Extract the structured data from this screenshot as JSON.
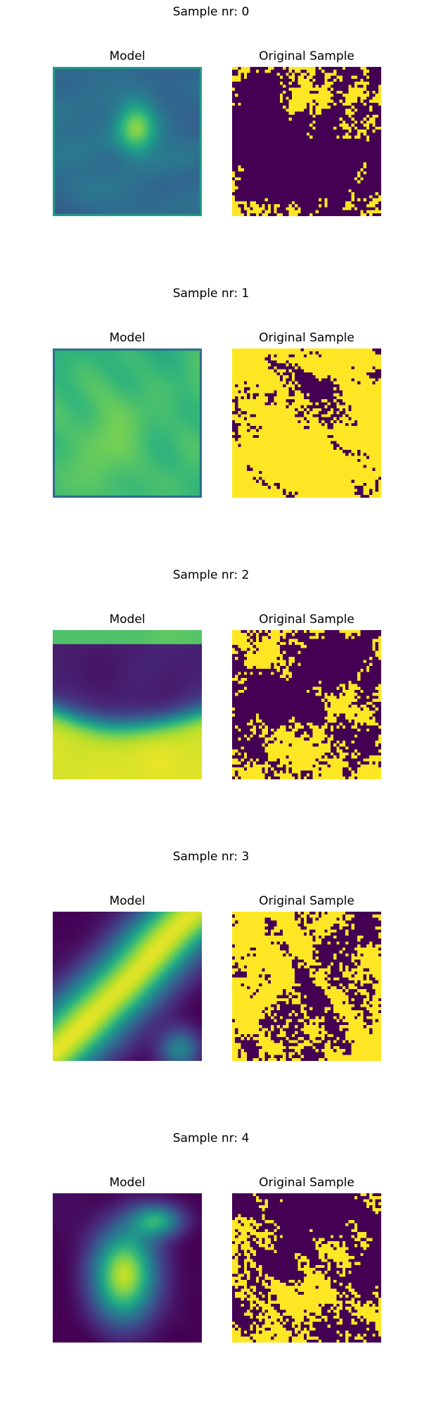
{
  "panel_labels": {
    "model": "Model",
    "original": "Original Sample"
  },
  "colormap": "viridis",
  "colors": {
    "low": "#440154",
    "high": "#fde725"
  },
  "samples": [
    {
      "title": "Sample nr: 0",
      "model_pattern": "speckled-dark-with-bright-center",
      "original_fill": "mostly-dark"
    },
    {
      "title": "Sample nr: 1",
      "model_pattern": "mottled-green-yellow",
      "original_fill": "mostly-bright"
    },
    {
      "title": "Sample nr: 2",
      "model_pattern": "dark-upper-band-bright-lower-blob",
      "original_fill": "mixed"
    },
    {
      "title": "Sample nr: 3",
      "model_pattern": "bright-diagonal-band",
      "original_fill": "mostly-bright"
    },
    {
      "title": "Sample nr: 4",
      "model_pattern": "bright-central-blob",
      "original_fill": "mixed"
    }
  ]
}
